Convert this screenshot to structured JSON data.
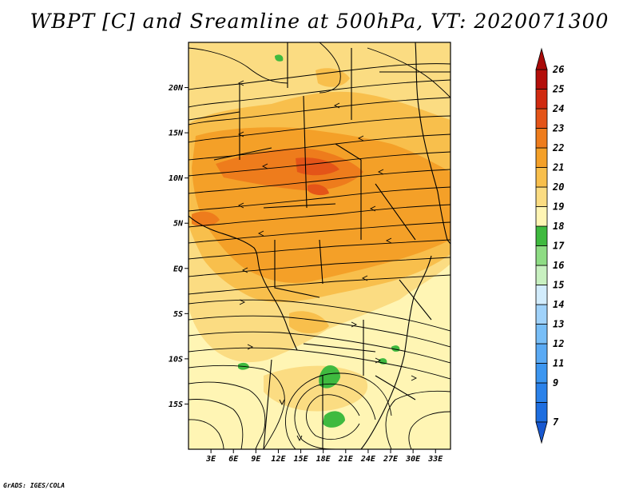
{
  "title": "WBPT [C] and Sreamline at 500hPa, VT: 2020071300",
  "credit": "GrADS: IGES/COLA",
  "map": {
    "variable": "Wet bulb potential temperature",
    "units": "C",
    "level": "500hPa",
    "valid_time": "2020071300",
    "lon_range": [
      0,
      35
    ],
    "lat_range": [
      -20,
      25
    ],
    "lon_ticks": [
      {
        "value": 3,
        "label": "3E"
      },
      {
        "value": 6,
        "label": "6E"
      },
      {
        "value": 9,
        "label": "9E"
      },
      {
        "value": 12,
        "label": "12E"
      },
      {
        "value": 15,
        "label": "15E"
      },
      {
        "value": 18,
        "label": "18E"
      },
      {
        "value": 21,
        "label": "21E"
      },
      {
        "value": 24,
        "label": "24E"
      },
      {
        "value": 27,
        "label": "27E"
      },
      {
        "value": 30,
        "label": "30E"
      },
      {
        "value": 33,
        "label": "33E"
      }
    ],
    "lat_ticks": [
      {
        "value": 20,
        "label": "20N"
      },
      {
        "value": 15,
        "label": "15N"
      },
      {
        "value": 10,
        "label": "10N"
      },
      {
        "value": 5,
        "label": "5N"
      },
      {
        "value": 0,
        "label": "EQ"
      },
      {
        "value": -5,
        "label": "5S"
      },
      {
        "value": -10,
        "label": "10S"
      },
      {
        "value": -15,
        "label": "15S"
      }
    ]
  },
  "colorbar": {
    "levels": [
      {
        "label": "7",
        "color": "#1e6ee0"
      },
      {
        "label": "9",
        "color": "#2b82ea"
      },
      {
        "label": "11",
        "color": "#3c96f0"
      },
      {
        "label": "12",
        "color": "#5aaaf4"
      },
      {
        "label": "13",
        "color": "#78bef7"
      },
      {
        "label": "14",
        "color": "#a0d2fa"
      },
      {
        "label": "15",
        "color": "#d2ecfc"
      },
      {
        "label": "16",
        "color": "#c8f0c0"
      },
      {
        "label": "17",
        "color": "#8edc84"
      },
      {
        "label": "18",
        "color": "#3fba3f"
      },
      {
        "label": "19",
        "color": "#fff5b4"
      },
      {
        "label": "20",
        "color": "#fbdc82"
      },
      {
        "label": "21",
        "color": "#f8bf4c"
      },
      {
        "label": "22",
        "color": "#f4a028"
      },
      {
        "label": "23",
        "color": "#ee7c1c"
      },
      {
        "label": "24",
        "color": "#e45418"
      },
      {
        "label": "25",
        "color": "#d02a10"
      },
      {
        "label": "26",
        "color": "#b40e0a"
      }
    ],
    "arrow_top_color": "#a80a08",
    "arrow_bottom_color": "#1858d0"
  }
}
